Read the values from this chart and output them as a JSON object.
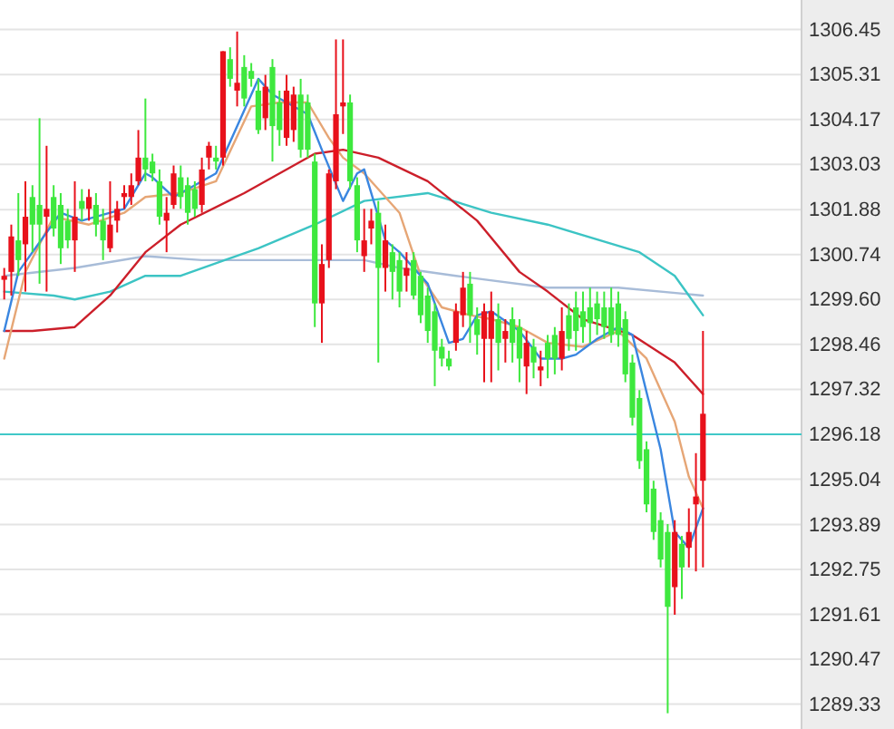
{
  "chart_data": {
    "type": "candlestick",
    "categories": [
      null,
      null,
      null,
      null,
      null,
      null,
      null,
      null,
      null,
      null,
      null,
      null,
      null,
      null,
      null,
      null,
      null,
      null,
      null,
      null,
      null,
      null,
      null,
      null,
      null,
      null,
      null,
      null,
      null,
      null,
      null,
      null,
      null,
      null,
      null,
      null,
      null,
      null,
      null,
      null,
      null,
      null,
      null,
      null,
      null,
      null,
      null,
      null,
      null,
      null,
      null,
      null,
      null,
      null,
      null,
      null,
      null,
      null,
      null,
      null,
      null,
      null,
      null,
      null,
      null,
      null,
      null,
      null,
      null,
      null,
      null,
      null,
      null,
      null,
      null,
      null,
      null,
      null,
      null,
      null,
      null,
      null,
      null,
      null,
      null,
      null,
      null,
      null,
      null,
      null,
      null,
      null,
      null,
      null,
      null,
      null,
      null,
      null,
      null,
      null
    ],
    "ohlc": [
      [
        1300.1,
        1300.4,
        1299.6,
        1300.2
      ],
      [
        1300.3,
        1301.5,
        1299.7,
        1301.2
      ],
      [
        1301.1,
        1302.3,
        1300.2,
        1300.6
      ],
      [
        1301.0,
        1302.6,
        1299.8,
        1301.7
      ],
      [
        1302.2,
        1302.5,
        1300.8,
        1301.5
      ],
      [
        1302.0,
        1304.2,
        1300.0,
        1301.5
      ],
      [
        1301.7,
        1303.5,
        1299.8,
        1301.9
      ],
      [
        1302.2,
        1302.5,
        1301.2,
        1301.4
      ],
      [
        1302.0,
        1302.3,
        1300.5,
        1300.9
      ],
      [
        1301.6,
        1301.9,
        1300.9,
        1301.1
      ],
      [
        1301.1,
        1302.6,
        1300.3,
        1301.7
      ],
      [
        1302.1,
        1302.4,
        1301.6,
        1301.9
      ],
      [
        1301.9,
        1302.4,
        1301.6,
        1302.2
      ],
      [
        1302.0,
        1302.3,
        1301.2,
        1301.5
      ],
      [
        1301.6,
        1301.9,
        1300.6,
        1301.1
      ],
      [
        1300.9,
        1302.6,
        1300.8,
        1301.5
      ],
      [
        1301.6,
        1302.1,
        1301.3,
        1301.9
      ],
      [
        1302.2,
        1302.5,
        1301.9,
        1302.3
      ],
      [
        1302.2,
        1302.8,
        1302.0,
        1302.5
      ],
      [
        1302.6,
        1303.9,
        1302.5,
        1303.2
      ],
      [
        1303.2,
        1304.7,
        1302.6,
        1302.9
      ],
      [
        1303.1,
        1303.3,
        1302.6,
        1302.8
      ],
      [
        1302.6,
        1302.9,
        1301.5,
        1301.7
      ],
      [
        1301.6,
        1302.2,
        1300.8,
        1301.8
      ],
      [
        1302.0,
        1303.0,
        1301.9,
        1302.8
      ],
      [
        1302.7,
        1303.0,
        1301.9,
        1302.2
      ],
      [
        1302.5,
        1302.7,
        1301.5,
        1301.8
      ],
      [
        1302.4,
        1302.6,
        1301.7,
        1301.9
      ],
      [
        1302.0,
        1303.2,
        1301.8,
        1302.9
      ],
      [
        1303.2,
        1303.6,
        1302.9,
        1303.5
      ],
      [
        1303.2,
        1303.5,
        1302.9,
        1303.1
      ],
      [
        1303.2,
        1305.9,
        1303.0,
        1305.9
      ],
      [
        1305.7,
        1306.0,
        1305.0,
        1305.2
      ],
      [
        1304.9,
        1306.4,
        1304.5,
        1305.1
      ],
      [
        1305.5,
        1305.8,
        1304.5,
        1304.7
      ],
      [
        1305.4,
        1305.6,
        1305.0,
        1305.2
      ],
      [
        1304.9,
        1305.2,
        1303.8,
        1303.9
      ],
      [
        1304.2,
        1305.3,
        1303.9,
        1305.0
      ],
      [
        1305.5,
        1305.7,
        1303.1,
        1304.0
      ],
      [
        1304.6,
        1304.9,
        1303.5,
        1303.9
      ],
      [
        1303.7,
        1305.3,
        1303.5,
        1304.9
      ],
      [
        1303.9,
        1305.0,
        1303.6,
        1304.8
      ],
      [
        1304.8,
        1305.2,
        1303.2,
        1303.4
      ],
      [
        1304.6,
        1304.8,
        1303.2,
        1303.4
      ],
      [
        1303.1,
        1303.3,
        1298.9,
        1299.5
      ],
      [
        1299.5,
        1301.0,
        1298.5,
        1300.5
      ],
      [
        1300.6,
        1302.9,
        1300.4,
        1302.8
      ],
      [
        1302.6,
        1306.2,
        1302.4,
        1304.3
      ],
      [
        1304.5,
        1306.2,
        1303.8,
        1304.6
      ],
      [
        1304.6,
        1304.8,
        1302.4,
        1302.6
      ],
      [
        1302.5,
        1302.7,
        1300.8,
        1301.1
      ],
      [
        1300.7,
        1301.9,
        1300.3,
        1301.1
      ],
      [
        1301.4,
        1301.9,
        1301.0,
        1301.6
      ],
      [
        1301.8,
        1302.1,
        1298.0,
        1300.4
      ],
      [
        1300.4,
        1301.5,
        1299.8,
        1301.1
      ],
      [
        1300.8,
        1301.0,
        1299.6,
        1300.3
      ],
      [
        1300.6,
        1300.8,
        1299.4,
        1299.8
      ],
      [
        1300.2,
        1300.8,
        1299.8,
        1300.4
      ],
      [
        1300.6,
        1300.8,
        1299.6,
        1299.7
      ],
      [
        1300.2,
        1300.3,
        1299.0,
        1299.2
      ],
      [
        1299.7,
        1299.9,
        1298.5,
        1298.8
      ],
      [
        1299.3,
        1299.5,
        1297.4,
        1298.3
      ],
      [
        1298.4,
        1298.6,
        1297.9,
        1298.1
      ],
      [
        1298.1,
        1298.3,
        1297.8,
        1297.9
      ],
      [
        1298.5,
        1299.5,
        1298.3,
        1299.3
      ],
      [
        1299.2,
        1300.3,
        1298.9,
        1299.9
      ],
      [
        1300.0,
        1300.3,
        1298.5,
        1299.2
      ],
      [
        1299.1,
        1299.4,
        1298.2,
        1298.7
      ],
      [
        1298.6,
        1299.5,
        1297.5,
        1299.3
      ],
      [
        1298.6,
        1299.8,
        1297.5,
        1299.3
      ],
      [
        1299.1,
        1299.5,
        1297.8,
        1298.5
      ],
      [
        1298.6,
        1299.1,
        1298.0,
        1298.8
      ],
      [
        1299.1,
        1299.4,
        1298.0,
        1298.5
      ],
      [
        1298.9,
        1299.1,
        1297.5,
        1298.1
      ],
      [
        1297.9,
        1298.8,
        1297.2,
        1298.5
      ],
      [
        1298.4,
        1298.6,
        1297.6,
        1298.0
      ],
      [
        1297.8,
        1298.3,
        1297.4,
        1297.9
      ],
      [
        1298.5,
        1298.7,
        1297.6,
        1298.1
      ],
      [
        1298.7,
        1298.9,
        1297.7,
        1298.1
      ],
      [
        1298.1,
        1299.4,
        1297.8,
        1298.8
      ],
      [
        1299.2,
        1299.5,
        1298.3,
        1298.6
      ],
      [
        1299.4,
        1299.8,
        1298.3,
        1298.8
      ],
      [
        1299.3,
        1299.8,
        1298.5,
        1298.9
      ],
      [
        1299.4,
        1299.9,
        1298.5,
        1299.0
      ],
      [
        1299.5,
        1299.8,
        1298.7,
        1299.1
      ],
      [
        1299.4,
        1299.8,
        1298.6,
        1298.9
      ],
      [
        1299.4,
        1299.9,
        1298.5,
        1298.7
      ],
      [
        1299.5,
        1299.8,
        1298.4,
        1298.7
      ],
      [
        1299.1,
        1299.3,
        1297.5,
        1297.7
      ],
      [
        1298.0,
        1298.2,
        1296.4,
        1296.6
      ],
      [
        1297.1,
        1297.3,
        1295.3,
        1295.5
      ],
      [
        1295.8,
        1296.0,
        1294.2,
        1294.4
      ],
      [
        1294.8,
        1295.0,
        1293.5,
        1293.7
      ],
      [
        1294.0,
        1294.2,
        1292.8,
        1293.0
      ],
      [
        1293.7,
        1293.9,
        1289.1,
        1291.8
      ],
      [
        1292.3,
        1294.0,
        1291.6,
        1293.7
      ],
      [
        1293.4,
        1293.6,
        1292.0,
        1292.8
      ],
      [
        1293.3,
        1294.3,
        1292.8,
        1293.7
      ],
      [
        1294.4,
        1295.7,
        1292.7,
        1294.6
      ],
      [
        1295.0,
        1298.8,
        1292.8,
        1296.7
      ]
    ],
    "colors": [
      "#e8111b",
      "#e8111b",
      "#3ee83e",
      "#e8111b",
      "#3ee83e",
      "#3ee83e",
      "#e8111b",
      "#3ee83e",
      "#3ee83e",
      "#3ee83e",
      "#e8111b",
      "#3ee83e",
      "#e8111b",
      "#3ee83e",
      "#3ee83e",
      "#e8111b",
      "#e8111b",
      "#e8111b",
      "#e8111b",
      "#e8111b",
      "#3ee83e",
      "#3ee83e",
      "#3ee83e",
      "#e8111b",
      "#e8111b",
      "#3ee83e",
      "#3ee83e",
      "#3ee83e",
      "#e8111b",
      "#e8111b",
      "#3ee83e",
      "#e8111b",
      "#3ee83e",
      "#e8111b",
      "#3ee83e",
      "#3ee83e",
      "#3ee83e",
      "#e8111b",
      "#3ee83e",
      "#3ee83e",
      "#e8111b",
      "#e8111b",
      "#3ee83e",
      "#3ee83e",
      "#3ee83e",
      "#e8111b",
      "#e8111b",
      "#e8111b",
      "#e8111b",
      "#3ee83e",
      "#3ee83e",
      "#e8111b",
      "#e8111b",
      "#3ee83e",
      "#e8111b",
      "#3ee83e",
      "#3ee83e",
      "#e8111b",
      "#3ee83e",
      "#3ee83e",
      "#3ee83e",
      "#3ee83e",
      "#3ee83e",
      "#3ee83e",
      "#e8111b",
      "#e8111b",
      "#3ee83e",
      "#3ee83e",
      "#e8111b",
      "#e8111b",
      "#3ee83e",
      "#e8111b",
      "#3ee83e",
      "#3ee83e",
      "#e8111b",
      "#3ee83e",
      "#e8111b",
      "#3ee83e",
      "#3ee83e",
      "#e8111b",
      "#3ee83e",
      "#3ee83e",
      "#3ee83e",
      "#3ee83e",
      "#3ee83e",
      "#3ee83e",
      "#3ee83e",
      "#3ee83e",
      "#3ee83e",
      "#3ee83e",
      "#3ee83e",
      "#3ee83e",
      "#3ee83e",
      "#3ee83e",
      "#3ee83e",
      "#e8111b",
      "#3ee83e",
      "#e8111b",
      "#e8111b",
      "#e8111b"
    ],
    "series": [
      {
        "type": "line",
        "color": "#a8bcd8",
        "values": [
          1300.2,
          null,
          null,
          null,
          null,
          null,
          null,
          null,
          null,
          null,
          1300.4,
          null,
          null,
          null,
          null,
          null,
          null,
          null,
          null,
          null,
          1300.7,
          null,
          null,
          null,
          null,
          null,
          null,
          null,
          1300.6,
          null,
          null,
          null,
          null,
          null,
          null,
          null,
          null,
          null,
          null,
          null,
          null,
          null,
          null,
          null,
          null,
          null,
          null,
          null,
          null,
          null,
          null,
          1300.6,
          null,
          null,
          null,
          null,
          1300.4,
          null,
          null,
          null,
          null,
          null,
          null,
          null,
          1300.2,
          null,
          null,
          null,
          null,
          null,
          null,
          null,
          null,
          null,
          null,
          null,
          null,
          1299.9,
          null,
          null,
          null,
          null,
          null,
          null,
          null,
          null,
          null,
          1299.9,
          null,
          null,
          null,
          null,
          null,
          null,
          null,
          null,
          null,
          null,
          null,
          1299.7
        ]
      },
      {
        "type": "line",
        "color": "#3cc4c4",
        "values": [
          1299.8,
          null,
          null,
          null,
          null,
          null,
          null,
          1299.7,
          null,
          null,
          1299.6,
          null,
          null,
          null,
          null,
          1299.8,
          null,
          null,
          null,
          null,
          1300.2,
          null,
          null,
          null,
          null,
          1300.2,
          null,
          null,
          null,
          null,
          null,
          null,
          null,
          null,
          null,
          null,
          1300.9,
          null,
          null,
          null,
          null,
          null,
          null,
          null,
          1301.5,
          null,
          null,
          null,
          null,
          null,
          null,
          1302.1,
          null,
          null,
          null,
          null,
          null,
          null,
          null,
          null,
          1302.3,
          null,
          null,
          null,
          null,
          null,
          null,
          null,
          null,
          1301.8,
          null,
          null,
          null,
          null,
          null,
          null,
          null,
          1301.5,
          null,
          null,
          null,
          null,
          null,
          null,
          null,
          null,
          null,
          null,
          null,
          null,
          1300.8,
          null,
          null,
          null,
          null,
          1300.2,
          null,
          null,
          null,
          1299.2
        ]
      },
      {
        "type": "line",
        "color": "#cc1f2a",
        "values": [
          1298.8,
          null,
          null,
          null,
          1298.8,
          null,
          null,
          null,
          null,
          null,
          1298.9,
          null,
          null,
          null,
          null,
          1299.7,
          null,
          null,
          null,
          null,
          1300.8,
          null,
          null,
          null,
          null,
          1301.5,
          null,
          null,
          null,
          null,
          null,
          null,
          null,
          null,
          1302.3,
          null,
          null,
          null,
          null,
          null,
          null,
          null,
          null,
          null,
          1303.3,
          null,
          null,
          null,
          1303.4,
          null,
          null,
          null,
          null,
          1303.2,
          null,
          null,
          null,
          null,
          null,
          null,
          1302.6,
          null,
          null,
          null,
          null,
          null,
          null,
          1301.6,
          null,
          null,
          null,
          null,
          null,
          1300.3,
          null,
          null,
          null,
          1299.8,
          null,
          null,
          null,
          null,
          1299.1,
          null,
          null,
          null,
          null,
          null,
          null,
          1298.7,
          null,
          null,
          null,
          null,
          null,
          1298.0,
          null,
          null,
          null,
          1297.2
        ]
      },
      {
        "type": "line",
        "color": "#e6a676",
        "values": [
          1298.1,
          null,
          null,
          1300.3,
          null,
          null,
          null,
          1301.7,
          null,
          null,
          null,
          null,
          1301.5,
          null,
          null,
          null,
          null,
          1301.8,
          null,
          null,
          1302.2,
          null,
          null,
          null,
          null,
          1302.3,
          null,
          null,
          null,
          null,
          1302.6,
          null,
          null,
          null,
          null,
          1304.5,
          null,
          null,
          null,
          1304.6,
          null,
          null,
          null,
          1304.6,
          null,
          null,
          1303.7,
          null,
          1303.2,
          null,
          null,
          1302.8,
          null,
          null,
          null,
          null,
          1301.8,
          null,
          null,
          1300.2,
          null,
          null,
          1299.4,
          null,
          null,
          null,
          1299.2,
          null,
          null,
          1299.1,
          null,
          null,
          null,
          1298.9,
          null,
          null,
          null,
          1298.5,
          null,
          null,
          null,
          null,
          1298.4,
          null,
          null,
          null,
          null,
          1298.8,
          null,
          null,
          null,
          1298.1,
          null,
          null,
          null,
          1296.5,
          null,
          1295.1,
          null,
          1294.3
        ]
      },
      {
        "type": "line",
        "color": "#3a86e0",
        "values": [
          1298.8,
          null,
          1300.3,
          null,
          null,
          null,
          null,
          null,
          1301.8,
          null,
          null,
          1301.6,
          null,
          null,
          null,
          1301.8,
          null,
          1301.9,
          null,
          null,
          1302.8,
          1302.7,
          null,
          null,
          1302.2,
          1302.3,
          null,
          null,
          null,
          null,
          1302.8,
          null,
          null,
          null,
          null,
          null,
          1305.2,
          null,
          1304.8,
          null,
          null,
          null,
          null,
          1304.3,
          null,
          1303.4,
          null,
          null,
          1302.1,
          null,
          1302.8,
          1302.9,
          null,
          null,
          1301.1,
          null,
          1300.8,
          null,
          null,
          null,
          1300.0,
          null,
          null,
          1298.5,
          null,
          1298.6,
          null,
          1299.2,
          null,
          1299.3,
          null,
          null,
          null,
          1298.8,
          null,
          null,
          1298.1,
          null,
          null,
          1298.1,
          null,
          1298.2,
          null,
          null,
          1298.6,
          null,
          null,
          1298.9,
          null,
          1298.7,
          null,
          null,
          null,
          1295.8,
          null,
          1293.7,
          null,
          1293.3,
          null,
          1294.3
        ]
      }
    ],
    "ylim": [
      1288.7,
      1307.2
    ],
    "yticks": [
      1289.33,
      1290.47,
      1291.61,
      1292.75,
      1293.89,
      1295.04,
      1296.18,
      1297.32,
      1298.46,
      {
        "value": 1299.6,
        "label": "1299.60"
      },
      1300.74,
      1301.88,
      1303.03,
      1304.17,
      1305.31,
      1306.45
    ],
    "ref_lines": [
      {
        "axis": "y",
        "value": 1296.18,
        "color": "#40c8c8"
      }
    ],
    "grid": "y",
    "tick_labels": "y"
  }
}
